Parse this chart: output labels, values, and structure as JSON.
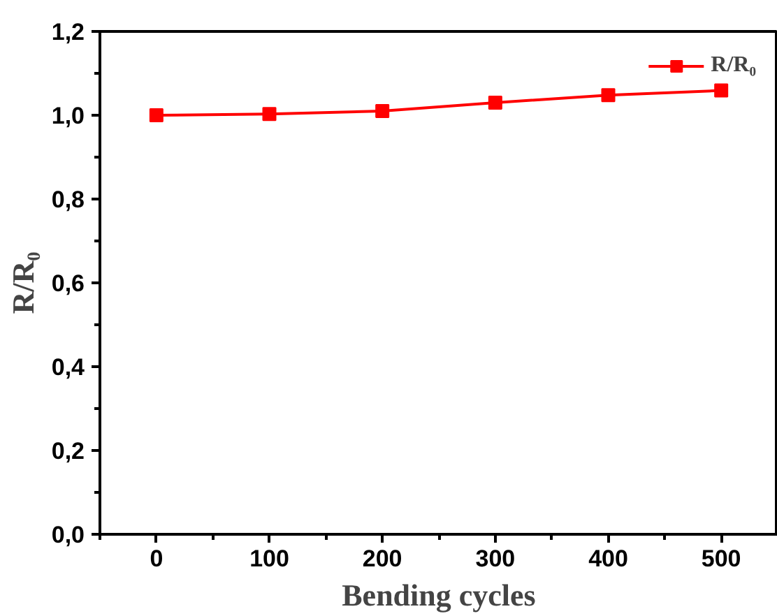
{
  "chart_data": {
    "type": "line",
    "xlabel": "Bending cycles",
    "ylabel": "R/R₀",
    "x": [
      0,
      100,
      200,
      300,
      400,
      500
    ],
    "series": [
      {
        "name": "R/R₀",
        "color": "#ff0000",
        "values": [
          1.0,
          1.003,
          1.01,
          1.03,
          1.048,
          1.059
        ]
      }
    ],
    "xlim": [
      -50,
      550
    ],
    "xticks": [
      0,
      100,
      200,
      300,
      400,
      500
    ],
    "ylim": [
      0,
      1.2
    ],
    "yticks": [
      {
        "value": 0,
        "label": "0,0"
      },
      {
        "value": 0.2,
        "label": "0,2"
      },
      {
        "value": 0.4,
        "label": "0,4"
      },
      {
        "value": 0.6,
        "label": "0,6"
      },
      {
        "value": 0.8,
        "label": "0,8"
      },
      {
        "value": 1.0,
        "label": "1,0"
      },
      {
        "value": 1.2,
        "label": "1,2"
      }
    ],
    "legend": "top right",
    "marker": "square",
    "line_style": "solid",
    "grid": false
  }
}
